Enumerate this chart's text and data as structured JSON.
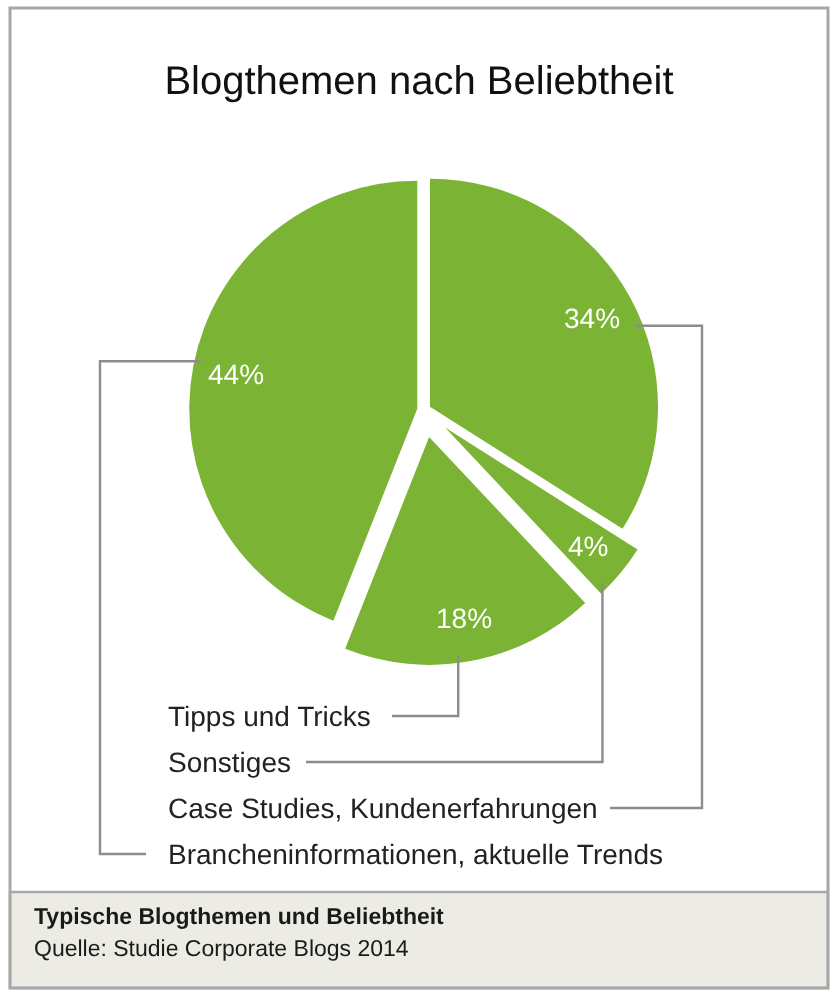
{
  "chart_data": {
    "type": "pie",
    "title": "Blogthemen nach Beliebtheit",
    "categories": [
      "Case Studies, Kundenerfahrungen",
      "Sonstiges",
      "Tipps und Tricks",
      "Brancheninformationen, aktuelle Trends"
    ],
    "values": [
      34,
      4,
      18,
      44
    ],
    "value_labels": [
      "34%",
      "4%",
      "18%",
      "44%"
    ],
    "colors": [
      "#7bb434",
      "#7bb434",
      "#7bb434",
      "#7bb434"
    ],
    "annotations": [
      "Typische Blogthemen und Beliebtheit",
      "Quelle: Studie Corporate Blogs 2014"
    ]
  }
}
